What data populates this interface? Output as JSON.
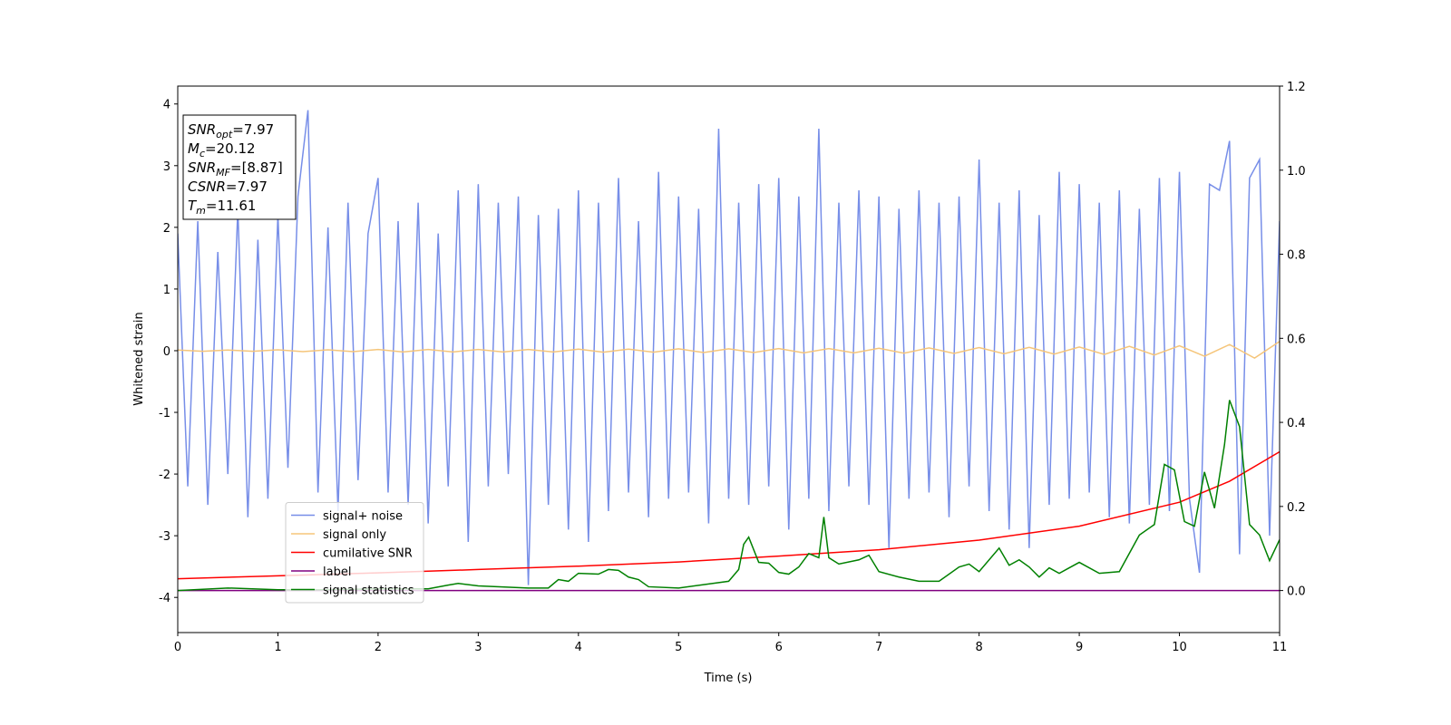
{
  "chart_data": {
    "type": "line",
    "xlabel": "Time (s)",
    "ylabel": "Whitened strain",
    "xlim": [
      0,
      11
    ],
    "ylim": [
      -4.57,
      4.29
    ],
    "y2lim": [
      -0.1,
      1.2
    ],
    "xticks": [
      0,
      1,
      2,
      3,
      4,
      5,
      6,
      7,
      8,
      9,
      10,
      11
    ],
    "yticks": [
      -4,
      -3,
      -2,
      -1,
      0,
      1,
      2,
      3,
      4
    ],
    "y2ticks": [
      {
        "value": 0,
        "label": "0.0"
      },
      0.2,
      0.4,
      0.6,
      0.8,
      {
        "value": 1,
        "label": "1.0"
      },
      1.2
    ],
    "legend_loc": "lower left",
    "annotations": [
      {
        "symbol": "SNR",
        "subscript": "opt",
        "text": "=7.97"
      },
      {
        "symbol": "M",
        "subscript": "c",
        "text": "=20.12"
      },
      {
        "symbol": "SNR",
        "subscript": "MF",
        "text": "=[8.87]"
      },
      {
        "symbol": "CSNR",
        "text": "=7.97"
      },
      {
        "symbol": "T",
        "subscript": "m",
        "text": "=11.61"
      }
    ],
    "series": [
      {
        "name": "signal+ noise",
        "color": "#778ee8",
        "x": [
          0,
          0.1,
          0.2,
          0.3,
          0.4,
          0.5,
          0.6,
          0.7,
          0.8,
          0.9,
          1,
          1.1,
          1.2,
          1.3,
          1.4,
          1.5,
          1.6,
          1.7,
          1.8,
          1.9,
          2,
          2.1,
          2.2,
          2.3,
          2.4,
          2.5,
          2.6,
          2.7,
          2.8,
          2.9,
          3,
          3.1,
          3.2,
          3.3,
          3.4,
          3.5,
          3.6,
          3.7,
          3.8,
          3.9,
          4,
          4.1,
          4.2,
          4.3,
          4.4,
          4.5,
          4.6,
          4.7,
          4.8,
          4.9,
          5,
          5.1,
          5.2,
          5.3,
          5.4,
          5.5,
          5.6,
          5.7,
          5.8,
          5.9,
          6,
          6.1,
          6.2,
          6.3,
          6.4,
          6.5,
          6.6,
          6.7,
          6.8,
          6.9,
          7,
          7.1,
          7.2,
          7.3,
          7.4,
          7.5,
          7.6,
          7.7,
          7.8,
          7.9,
          8,
          8.1,
          8.2,
          8.3,
          8.4,
          8.5,
          8.6,
          8.7,
          8.8,
          8.9,
          9,
          9.1,
          9.2,
          9.3,
          9.4,
          9.5,
          9.6,
          9.7,
          9.8,
          9.9,
          10,
          10.1,
          10.2,
          10.3,
          10.4,
          10.5,
          10.6,
          10.7,
          10.8,
          10.9,
          11
        ],
        "values": [
          1.9,
          -2.2,
          2.1,
          -2.5,
          1.6,
          -2.0,
          2.3,
          -2.7,
          1.8,
          -2.4,
          2.2,
          -1.9,
          2.5,
          3.9,
          -2.3,
          2.0,
          -2.6,
          2.4,
          -2.1,
          1.9,
          2.8,
          -2.3,
          2.1,
          -2.5,
          2.4,
          -2.8,
          1.9,
          -2.2,
          2.6,
          -3.1,
          2.7,
          -2.2,
          2.4,
          -2.0,
          2.5,
          -3.8,
          2.2,
          -2.5,
          2.3,
          -2.9,
          2.6,
          -3.1,
          2.4,
          -2.6,
          2.8,
          -2.3,
          2.1,
          -2.7,
          2.9,
          -2.4,
          2.5,
          -2.3,
          2.3,
          -2.8,
          3.6,
          -2.4,
          2.4,
          -2.5,
          2.7,
          -2.2,
          2.8,
          -2.9,
          2.5,
          -2.4,
          3.6,
          -2.6,
          2.4,
          -2.2,
          2.6,
          -2.5,
          2.5,
          -3.2,
          2.3,
          -2.4,
          2.6,
          -2.3,
          2.4,
          -2.7,
          2.5,
          -2.2,
          3.1,
          -2.6,
          2.4,
          -2.9,
          2.6,
          -3.2,
          2.2,
          -2.5,
          2.9,
          -2.4,
          2.7,
          -2.3,
          2.4,
          -2.7,
          2.6,
          -2.8,
          2.3,
          -2.5,
          2.8,
          -2.6,
          2.9,
          -2.4,
          -3.6,
          2.7,
          2.6,
          3.4,
          -3.3,
          2.8,
          3.1,
          -3.0,
          2.1
        ]
      },
      {
        "name": "signal only",
        "color": "#f5c57a",
        "x": [
          0,
          0.25,
          0.5,
          0.75,
          1,
          1.25,
          1.5,
          1.75,
          2,
          2.25,
          2.5,
          2.75,
          3,
          3.25,
          3.5,
          3.75,
          4,
          4.25,
          4.5,
          4.75,
          5,
          5.25,
          5.5,
          5.75,
          6,
          6.25,
          6.5,
          6.75,
          7,
          7.25,
          7.5,
          7.75,
          8,
          8.25,
          8.5,
          8.75,
          9,
          9.25,
          9.5,
          9.75,
          10,
          10.25,
          10.5,
          10.75,
          11
        ],
        "values": [
          0.01,
          -0.01,
          0.01,
          -0.01,
          0.015,
          -0.015,
          0.015,
          -0.015,
          0.02,
          -0.02,
          0.02,
          -0.02,
          0.02,
          -0.02,
          0.02,
          -0.02,
          0.025,
          -0.025,
          0.025,
          -0.025,
          0.03,
          -0.03,
          0.03,
          -0.03,
          0.035,
          -0.035,
          0.035,
          -0.035,
          0.04,
          -0.04,
          0.045,
          -0.045,
          0.05,
          -0.05,
          0.055,
          -0.055,
          0.06,
          -0.06,
          0.07,
          -0.07,
          0.08,
          -0.09,
          0.1,
          -0.12,
          0.15
        ]
      },
      {
        "name": "cumilative SNR",
        "color": "#ff0000",
        "axis": "y2",
        "x": [
          0,
          1,
          2,
          3,
          4,
          5,
          6,
          7,
          8,
          9,
          10,
          10.5,
          11
        ],
        "values": [
          0.028,
          0.035,
          0.042,
          0.05,
          0.058,
          0.068,
          0.082,
          0.097,
          0.12,
          0.153,
          0.21,
          0.26,
          0.33
        ]
      },
      {
        "name": "label",
        "color": "#800080",
        "axis": "y2",
        "x": [
          0,
          11
        ],
        "values": [
          0,
          0
        ]
      },
      {
        "name": "signal statistics",
        "color": "#008000",
        "axis": "y2",
        "x": [
          0,
          0.5,
          1,
          1.5,
          2,
          2.5,
          2.7,
          2.8,
          3,
          3.5,
          3.7,
          3.8,
          3.9,
          4,
          4.2,
          4.3,
          4.4,
          4.5,
          4.6,
          4.7,
          5,
          5.5,
          5.6,
          5.65,
          5.7,
          5.8,
          5.9,
          6,
          6.1,
          6.2,
          6.3,
          6.4,
          6.45,
          6.5,
          6.6,
          6.8,
          6.9,
          7,
          7.2,
          7.4,
          7.6,
          7.8,
          7.9,
          8,
          8.2,
          8.3,
          8.4,
          8.5,
          8.6,
          8.7,
          8.8,
          8.9,
          9,
          9.2,
          9.4,
          9.6,
          9.75,
          9.85,
          9.95,
          10.05,
          10.15,
          10.25,
          10.35,
          10.45,
          10.5,
          10.6,
          10.7,
          10.8,
          10.9,
          11
        ],
        "values": [
          0,
          0.006,
          0.002,
          0.002,
          0.004,
          0.004,
          0.013,
          0.017,
          0.011,
          0.006,
          0.006,
          0.026,
          0.022,
          0.041,
          0.039,
          0.05,
          0.048,
          0.032,
          0.026,
          0.009,
          0.006,
          0.022,
          0.05,
          0.11,
          0.127,
          0.067,
          0.065,
          0.043,
          0.039,
          0.056,
          0.088,
          0.078,
          0.175,
          0.078,
          0.063,
          0.073,
          0.084,
          0.045,
          0.032,
          0.022,
          0.022,
          0.056,
          0.063,
          0.045,
          0.101,
          0.06,
          0.073,
          0.056,
          0.032,
          0.054,
          0.041,
          0.054,
          0.067,
          0.041,
          0.045,
          0.132,
          0.157,
          0.3,
          0.287,
          0.164,
          0.153,
          0.282,
          0.196,
          0.347,
          0.453,
          0.39,
          0.157,
          0.132,
          0.071,
          0.121
        ]
      }
    ]
  }
}
